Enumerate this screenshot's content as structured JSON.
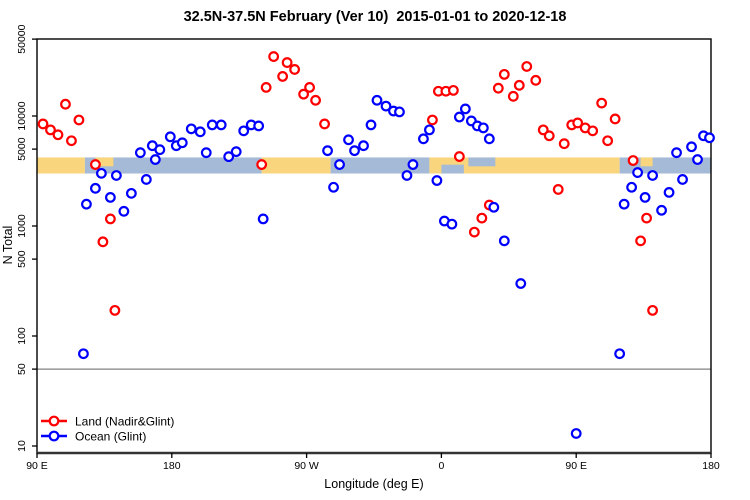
{
  "chart_data": {
    "type": "scatter",
    "title": "32.5N-37.5N February (Ver 10)  2015-01-01 to 2020-12-18",
    "xlabel": "Longitude (deg E)",
    "ylabel": "N Total",
    "x_axis": {
      "domain_deg": [
        90,
        540
      ],
      "ticks": [
        {
          "value": 90,
          "label": "90 E"
        },
        {
          "value": 180,
          "label": "180"
        },
        {
          "value": 270,
          "label": "90 W"
        },
        {
          "value": 360,
          "label": "0"
        },
        {
          "value": 450,
          "label": "90 E"
        },
        {
          "value": 540,
          "label": "180"
        }
      ]
    },
    "y_axis": {
      "scale": "log",
      "domain": [
        10,
        50000
      ],
      "ticks": [
        10,
        50,
        100,
        500,
        1000,
        5000,
        10000,
        50000
      ],
      "reference_line": 50,
      "grid": false
    },
    "legend": {
      "position": "bottom-left",
      "entries": [
        {
          "label": "Land (Nadir&Glint)",
          "color": "#ff0000"
        },
        {
          "label": "Ocean (Glint)",
          "color": "#0000ff"
        }
      ]
    },
    "surface_band": {
      "value_range": [
        3000,
        4200
      ],
      "segments": [
        {
          "type": "land",
          "from": 90,
          "to": 122
        },
        {
          "type": "ocean",
          "from": 122,
          "to": 240
        },
        {
          "type": "land",
          "from": 240,
          "to": 286
        },
        {
          "type": "ocean",
          "from": 286,
          "to": 352
        },
        {
          "type": "land",
          "from": 352,
          "to": 479
        },
        {
          "type": "ocean",
          "from": 479,
          "to": 540
        }
      ],
      "patches": [
        {
          "type": "land",
          "from": 129,
          "to": 141,
          "part": "top"
        },
        {
          "type": "ocean",
          "from": 360,
          "to": 375,
          "part": "bottom"
        },
        {
          "type": "ocean",
          "from": 378,
          "to": 396,
          "part": "top"
        },
        {
          "type": "land",
          "from": 493,
          "to": 501,
          "part": "top"
        }
      ]
    },
    "series": [
      {
        "name": "Land (Nadir&Glint)",
        "color": "#ff0000",
        "points": [
          [
            94,
            8470
          ],
          [
            99,
            7480
          ],
          [
            104,
            6750
          ],
          [
            109,
            12800
          ],
          [
            113,
            5960
          ],
          [
            118,
            9200
          ],
          [
            129,
            3620
          ],
          [
            134,
            718
          ],
          [
            139,
            1160
          ],
          [
            142,
            171
          ],
          [
            240,
            3620
          ],
          [
            243,
            18200
          ],
          [
            248,
            34700
          ],
          [
            254,
            22900
          ],
          [
            257,
            30600
          ],
          [
            262,
            26500
          ],
          [
            268,
            15800
          ],
          [
            272,
            18200
          ],
          [
            276,
            13900
          ],
          [
            282,
            8470
          ],
          [
            354,
            9200
          ],
          [
            358,
            16800
          ],
          [
            363,
            16800
          ],
          [
            368,
            17100
          ],
          [
            372,
            4280
          ],
          [
            382,
            880
          ],
          [
            387,
            1180
          ],
          [
            392,
            1550
          ],
          [
            398,
            17900
          ],
          [
            402,
            23900
          ],
          [
            408,
            15100
          ],
          [
            412,
            19000
          ],
          [
            417,
            28200
          ],
          [
            423,
            21100
          ],
          [
            428,
            7480
          ],
          [
            432,
            6610
          ],
          [
            438,
            2150
          ],
          [
            442,
            5600
          ],
          [
            447,
            8300
          ],
          [
            451,
            8650
          ],
          [
            456,
            7800
          ],
          [
            461,
            7330
          ],
          [
            467,
            13100
          ],
          [
            471,
            5960
          ],
          [
            476,
            9400
          ],
          [
            488,
            3940
          ],
          [
            493,
            733
          ],
          [
            497,
            1180
          ],
          [
            501,
            171
          ]
        ]
      },
      {
        "name": "Ocean (Glint)",
        "color": "#0000ff",
        "points": [
          [
            121,
            69
          ],
          [
            123,
            1580
          ],
          [
            129,
            2200
          ],
          [
            133,
            3010
          ],
          [
            139,
            1820
          ],
          [
            143,
            2880
          ],
          [
            148,
            1360
          ],
          [
            153,
            1980
          ],
          [
            159,
            4640
          ],
          [
            163,
            2650
          ],
          [
            167,
            5370
          ],
          [
            169,
            4020
          ],
          [
            172,
            4940
          ],
          [
            179,
            6470
          ],
          [
            183,
            5370
          ],
          [
            187,
            5710
          ],
          [
            193,
            7640
          ],
          [
            199,
            7180
          ],
          [
            203,
            4640
          ],
          [
            207,
            8300
          ],
          [
            213,
            8300
          ],
          [
            218,
            4270
          ],
          [
            223,
            4740
          ],
          [
            228,
            7330
          ],
          [
            233,
            8300
          ],
          [
            238,
            8130
          ],
          [
            241,
            1160
          ],
          [
            284,
            4840
          ],
          [
            288,
            2250
          ],
          [
            292,
            3620
          ],
          [
            298,
            6080
          ],
          [
            302,
            4840
          ],
          [
            308,
            5370
          ],
          [
            313,
            8300
          ],
          [
            317,
            13900
          ],
          [
            323,
            12300
          ],
          [
            328,
            11100
          ],
          [
            332,
            10900
          ],
          [
            337,
            2880
          ],
          [
            341,
            3620
          ],
          [
            348,
            6200
          ],
          [
            352,
            7480
          ],
          [
            357,
            2590
          ],
          [
            362,
            1110
          ],
          [
            367,
            1040
          ],
          [
            372,
            9790
          ],
          [
            376,
            11600
          ],
          [
            380,
            9020
          ],
          [
            384,
            8130
          ],
          [
            388,
            7800
          ],
          [
            392,
            6200
          ],
          [
            395,
            1480
          ],
          [
            402,
            733
          ],
          [
            413,
            300
          ],
          [
            450,
            13
          ],
          [
            479,
            69
          ],
          [
            482,
            1580
          ],
          [
            487,
            2250
          ],
          [
            491,
            3060
          ],
          [
            496,
            1820
          ],
          [
            501,
            2880
          ],
          [
            507,
            1390
          ],
          [
            512,
            2020
          ],
          [
            517,
            4640
          ],
          [
            521,
            2650
          ],
          [
            527,
            5250
          ],
          [
            531,
            4020
          ],
          [
            535,
            6610
          ],
          [
            539,
            6340
          ]
        ]
      }
    ]
  },
  "colors": {
    "land_marker": "#ff0000",
    "ocean_marker": "#0000ff",
    "band_land": "#f9d67e",
    "band_ocean": "#a5bad6",
    "reference_line": "#808080",
    "frame": "#000000",
    "marker_fill": "#ffffff"
  }
}
